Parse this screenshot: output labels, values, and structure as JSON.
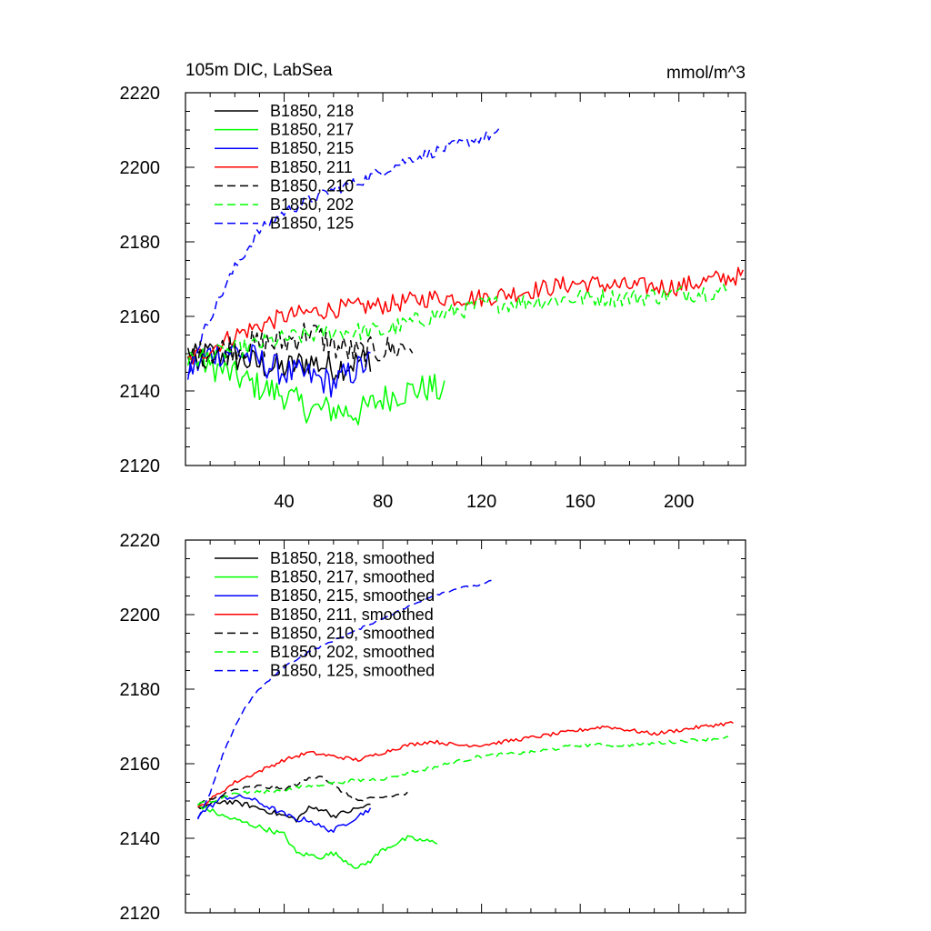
{
  "figure": {
    "title_left": "105m DIC, LabSea",
    "title_right": "mmol/m^3"
  },
  "chart_data": [
    {
      "type": "line",
      "panel": "top",
      "title": "105m DIC, LabSea",
      "units": "mmol/m^3",
      "xlim": [
        0,
        227
      ],
      "ylim": [
        2120,
        2220
      ],
      "xticks": [
        40,
        80,
        120,
        160,
        200
      ],
      "xtick_labels": [
        "40",
        "80",
        "120",
        "160",
        "200"
      ],
      "yticks": [
        2120,
        2140,
        2160,
        2180,
        2200,
        2220
      ],
      "ytick_labels": [
        "2120",
        "2140",
        "2160",
        "2180",
        "2200",
        "2220"
      ],
      "legend_position": "top-left",
      "series": [
        {
          "name": "B1850, 218",
          "color": "#000000",
          "dash": "solid",
          "x": [
            1,
            10,
            20,
            30,
            40,
            50,
            60,
            70,
            75
          ],
          "y": [
            2148,
            2150,
            2149,
            2147,
            2146,
            2148,
            2146,
            2148,
            2149
          ],
          "noise": 4
        },
        {
          "name": "B1850, 217",
          "color": "#00ff00",
          "dash": "solid",
          "x": [
            1,
            10,
            20,
            30,
            40,
            50,
            60,
            70,
            80,
            90,
            100,
            105
          ],
          "y": [
            2149,
            2147,
            2144,
            2141,
            2139,
            2135,
            2135,
            2134,
            2138,
            2140,
            2141,
            2139
          ],
          "noise": 4
        },
        {
          "name": "B1850, 215",
          "color": "#0000ff",
          "dash": "solid",
          "x": [
            1,
            10,
            20,
            30,
            40,
            50,
            60,
            65,
            70,
            75
          ],
          "y": [
            2145,
            2150,
            2151,
            2148,
            2145,
            2144,
            2142,
            2144,
            2146,
            2148
          ],
          "noise": 4
        },
        {
          "name": "B1850, 211",
          "color": "#ff0000",
          "dash": "solid",
          "x": [
            1,
            20,
            40,
            60,
            80,
            100,
            120,
            140,
            160,
            180,
            200,
            215,
            226
          ],
          "y": [
            2148,
            2155,
            2160,
            2162,
            2163,
            2165,
            2165,
            2167,
            2169,
            2168,
            2168,
            2170,
            2171
          ],
          "noise": 2.5
        },
        {
          "name": "B1850, 210",
          "color": "#000000",
          "dash": "dashed",
          "x": [
            1,
            20,
            40,
            50,
            60,
            70,
            80,
            92
          ],
          "y": [
            2149,
            2152,
            2153,
            2156,
            2152,
            2150,
            2151,
            2152
          ],
          "noise": 4
        },
        {
          "name": "B1850, 202",
          "color": "#00ff00",
          "dash": "dashed",
          "x": [
            1,
            20,
            40,
            60,
            80,
            100,
            120,
            140,
            160,
            180,
            200,
            220
          ],
          "y": [
            2148,
            2151,
            2154,
            2156,
            2156,
            2160,
            2163,
            2164,
            2165,
            2165,
            2166,
            2167
          ],
          "noise": 2.5
        },
        {
          "name": "B1850, 125",
          "color": "#0000ff",
          "dash": "dashed",
          "x": [
            1,
            10,
            20,
            30,
            40,
            50,
            60,
            70,
            80,
            90,
            100,
            110,
            120,
            127
          ],
          "y": [
            2145,
            2160,
            2173,
            2183,
            2188,
            2191,
            2194,
            2196,
            2199,
            2202,
            2204,
            2206,
            2208,
            2209
          ],
          "noise": 1.5
        }
      ]
    },
    {
      "type": "line",
      "panel": "bottom",
      "xlim": [
        0,
        227
      ],
      "ylim": [
        2120,
        2220
      ],
      "xticks": [
        40,
        80,
        120,
        160,
        200
      ],
      "xtick_labels": [],
      "yticks": [
        2120,
        2140,
        2160,
        2180,
        2200,
        2220
      ],
      "ytick_labels": [
        "2120",
        "2140",
        "2160",
        "2180",
        "2200",
        "2220"
      ],
      "legend_position": "top-left",
      "series": [
        {
          "name": "B1850, 218, smoothed",
          "color": "#000000",
          "dash": "solid",
          "x": [
            5,
            15,
            25,
            35,
            45,
            50,
            55,
            60,
            65,
            70,
            75
          ],
          "y": [
            2148,
            2150,
            2149,
            2147,
            2145,
            2148,
            2148,
            2146,
            2147,
            2148,
            2149
          ],
          "noise": 0.7
        },
        {
          "name": "B1850, 217, smoothed",
          "color": "#00ff00",
          "dash": "solid",
          "x": [
            5,
            15,
            25,
            35,
            40,
            45,
            55,
            60,
            65,
            70,
            75,
            80,
            90,
            100,
            102
          ],
          "y": [
            2149,
            2146,
            2144,
            2142,
            2141,
            2136,
            2135,
            2136,
            2134,
            2132,
            2134,
            2137,
            2140,
            2139,
            2139
          ],
          "noise": 0.7
        },
        {
          "name": "B1850, 215, smoothed",
          "color": "#0000ff",
          "dash": "solid",
          "x": [
            5,
            15,
            25,
            35,
            45,
            50,
            55,
            60,
            65,
            70,
            75
          ],
          "y": [
            2146,
            2151,
            2151,
            2148,
            2145,
            2145,
            2143,
            2142,
            2144,
            2146,
            2148
          ],
          "noise": 0.7
        },
        {
          "name": "B1850, 211, smoothed",
          "color": "#ff0000",
          "dash": "solid",
          "x": [
            5,
            20,
            30,
            40,
            50,
            60,
            70,
            80,
            90,
            100,
            110,
            120,
            130,
            140,
            150,
            160,
            170,
            180,
            190,
            200,
            210,
            222
          ],
          "y": [
            2148,
            2155,
            2158,
            2161,
            2163,
            2162,
            2161,
            2163,
            2165,
            2166,
            2165,
            2165,
            2166,
            2167,
            2168,
            2169,
            2170,
            2169,
            2168,
            2169,
            2170,
            2171
          ],
          "noise": 0.5
        },
        {
          "name": "B1850, 210, smoothed",
          "color": "#000000",
          "dash": "dashed",
          "x": [
            5,
            20,
            30,
            40,
            50,
            55,
            60,
            70,
            80,
            90
          ],
          "y": [
            2149,
            2153,
            2154,
            2153,
            2156,
            2157,
            2154,
            2150,
            2151,
            2152
          ],
          "noise": 0.5
        },
        {
          "name": "B1850, 202, smoothed",
          "color": "#00ff00",
          "dash": "dashed",
          "x": [
            5,
            20,
            40,
            60,
            80,
            100,
            120,
            140,
            160,
            180,
            200,
            220
          ],
          "y": [
            2149,
            2152,
            2153,
            2155,
            2156,
            2159,
            2162,
            2163,
            2165,
            2165,
            2166,
            2167
          ],
          "noise": 0.5
        },
        {
          "name": "B1850, 125, smoothed",
          "color": "#0000ff",
          "dash": "dashed",
          "x": [
            5,
            10,
            15,
            20,
            25,
            30,
            40,
            50,
            60,
            70,
            80,
            90,
            100,
            110,
            120,
            124
          ],
          "y": [
            2145,
            2152,
            2162,
            2170,
            2176,
            2180,
            2186,
            2190,
            2193,
            2196,
            2199,
            2202,
            2205,
            2207,
            2208,
            2209
          ],
          "noise": 0.3
        }
      ]
    }
  ]
}
